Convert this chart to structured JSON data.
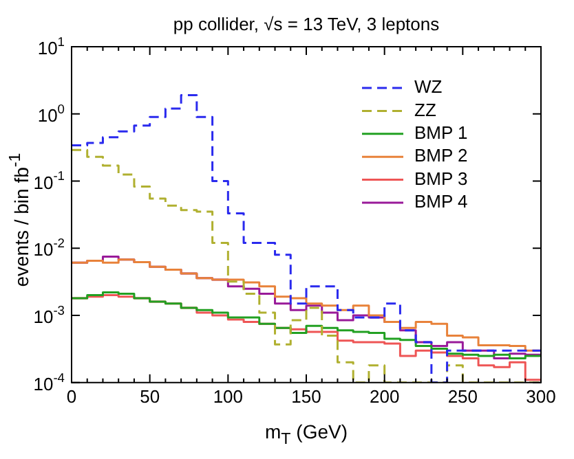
{
  "chart_data": {
    "type": "histogram",
    "title": "pp collider, √s = 13 TeV, 3 leptons",
    "xlabel": "m$_{T}$ (GeV)",
    "ylabel": "events / bin fb$^{-1}$",
    "bins": [
      0,
      10,
      20,
      30,
      40,
      50,
      60,
      70,
      80,
      90,
      100,
      110,
      120,
      130,
      140,
      150,
      160,
      170,
      180,
      190,
      200,
      210,
      220,
      230,
      240,
      250,
      260,
      270,
      280,
      290,
      300
    ],
    "series": [
      {
        "name": "WZ",
        "color": "#2a2aee",
        "line_style": "dashed",
        "values": [
          0.34,
          0.37,
          0.45,
          0.55,
          0.67,
          0.9,
          1.2,
          1.9,
          0.9,
          0.1,
          0.033,
          0.012,
          0.012,
          0.008,
          0.0015,
          0.0027,
          0.0027,
          0.0012,
          0.00093,
          0.00093,
          0.0015,
          0.0006,
          0.0004,
          null,
          0.0003,
          0.0003,
          0.0003,
          0.0003,
          0.0003,
          0.0003
        ]
      },
      {
        "name": "ZZ",
        "color": "#b0b030",
        "line_style": "dashed",
        "values": [
          0.29,
          0.23,
          0.17,
          0.125,
          0.083,
          0.055,
          0.043,
          0.037,
          0.035,
          0.012,
          0.0032,
          0.0021,
          0.0011,
          0.00037,
          0.00085,
          0.0013,
          0.0005,
          0.0002,
          null,
          0.00018,
          null,
          null,
          null,
          null,
          0.00018,
          null,
          null,
          null,
          null,
          null
        ]
      },
      {
        "name": "BMP 1",
        "color": "#22a022",
        "values": [
          0.0018,
          0.002,
          0.0022,
          0.0021,
          0.0018,
          0.0016,
          0.0015,
          0.0013,
          0.0012,
          0.0011,
          0.00093,
          0.00093,
          0.00075,
          0.00065,
          0.00055,
          0.0007,
          0.00065,
          0.0006,
          0.00057,
          0.00055,
          0.00045,
          0.00043,
          0.00035,
          0.00032,
          0.00027,
          0.00026,
          0.00025,
          0.00026,
          0.00023,
          0.00025
        ]
      },
      {
        "name": "BMP 2",
        "color": "#e8823a",
        "values": [
          0.0061,
          0.0065,
          0.0061,
          0.0068,
          0.0062,
          0.0053,
          0.0048,
          0.0042,
          0.0036,
          0.0034,
          0.0034,
          0.0031,
          0.0027,
          0.0019,
          0.0018,
          0.0015,
          0.0014,
          0.0012,
          0.0014,
          0.001,
          0.0008,
          0.00065,
          0.0008,
          0.00075,
          0.0005,
          0.00047,
          0.00036,
          0.00036,
          0.00035,
          0.0003
        ]
      },
      {
        "name": "BMP 3",
        "color": "#ee5555",
        "values": [
          0.0018,
          0.0019,
          0.002,
          0.0019,
          0.0018,
          0.0016,
          0.0015,
          0.0013,
          0.0011,
          0.001,
          0.00087,
          0.0008,
          0.00075,
          0.00065,
          0.00062,
          0.00057,
          0.00057,
          0.00042,
          0.0004,
          0.0004,
          0.00038,
          0.00025,
          0.0003,
          0.00028,
          0.00025,
          0.00023,
          0.00018,
          0.00017,
          0.0002,
          0.00011
        ]
      },
      {
        "name": "BMP 4",
        "color": "#991a99",
        "values": [
          0.0061,
          0.0065,
          0.0075,
          0.0068,
          0.0062,
          0.0053,
          0.0048,
          0.0042,
          0.0036,
          0.0034,
          0.0027,
          0.0025,
          0.0021,
          0.0015,
          0.0012,
          0.0014,
          0.0011,
          0.00085,
          0.001,
          0.00093,
          0.0008,
          0.0006,
          0.0004,
          0.00035,
          0.0004,
          0.0003,
          0.0003,
          0.00023,
          0.00027,
          0.00026
        ]
      }
    ],
    "xlim": [
      0,
      300
    ],
    "xticks": [
      0,
      {
        "value": 10,
        "label": null
      },
      {
        "value": 20,
        "label": null
      },
      {
        "value": 30,
        "label": null
      },
      {
        "value": 40,
        "label": null
      },
      50,
      {
        "value": 60,
        "label": null
      },
      {
        "value": 70,
        "label": null
      },
      {
        "value": 80,
        "label": null
      },
      {
        "value": 90,
        "label": null
      },
      100,
      {
        "value": 110,
        "label": null
      },
      {
        "value": 120,
        "label": null
      },
      {
        "value": 130,
        "label": null
      },
      {
        "value": 140,
        "label": null
      },
      150,
      {
        "value": 160,
        "label": null
      },
      {
        "value": 170,
        "label": null
      },
      {
        "value": 180,
        "label": null
      },
      {
        "value": 190,
        "label": null
      },
      200,
      {
        "value": 210,
        "label": null
      },
      {
        "value": 220,
        "label": null
      },
      {
        "value": 230,
        "label": null
      },
      {
        "value": 240,
        "label": null
      },
      250,
      {
        "value": 260,
        "label": null
      },
      {
        "value": 270,
        "label": null
      },
      {
        "value": 280,
        "label": null
      },
      {
        "value": 290,
        "label": null
      },
      300
    ],
    "ylim": [
      0.0001,
      10
    ],
    "yticks": [
      {
        "value": 0.0001,
        "label": "10$^{-4}$"
      },
      {
        "value": 0.001,
        "label": "10$^{-3}$"
      },
      {
        "value": 0.01,
        "label": "10$^{-2}$"
      },
      {
        "value": 0.1,
        "label": "10$^{-1}$"
      },
      {
        "value": 1,
        "label": "10$^{0}$"
      },
      {
        "value": 10,
        "label": "10$^{1}$"
      }
    ],
    "log": "y",
    "grid": false,
    "legend": "top right"
  }
}
